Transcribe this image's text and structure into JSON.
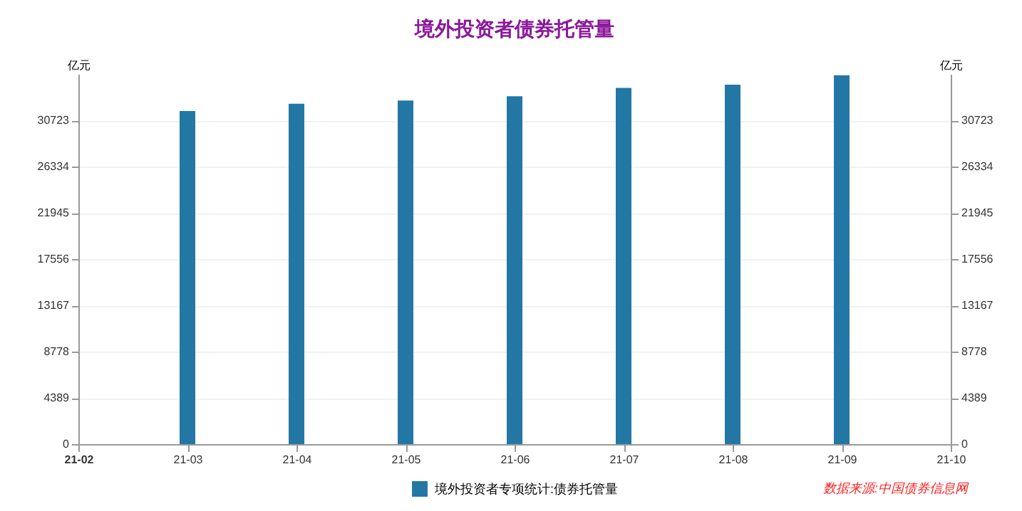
{
  "chart_data": {
    "type": "bar",
    "title": "境外投资者债券托管量",
    "categories": [
      "21-02",
      "21-03",
      "21-04",
      "21-05",
      "21-06",
      "21-07",
      "21-08",
      "21-09",
      "21-10"
    ],
    "series": [
      {
        "name": "境外投资者专项统计:债券托管量",
        "color": "#2377a4",
        "values": [
          null,
          31600,
          32300,
          32600,
          33000,
          33800,
          34100,
          35000,
          null
        ]
      }
    ],
    "ylabel": "亿元",
    "y2label": "亿元",
    "ylim": [
      0,
      35112
    ],
    "yticks": [
      0,
      4389,
      8778,
      13167,
      17556,
      21945,
      26334,
      30723
    ],
    "y2lim": [
      0,
      35112
    ],
    "y2ticks": [
      0,
      4389,
      8778,
      13167,
      17556,
      21945,
      26334,
      30723
    ],
    "grid": "y",
    "legend": "bottom",
    "annotations": [
      "数据来源:中国债券信息网"
    ]
  }
}
